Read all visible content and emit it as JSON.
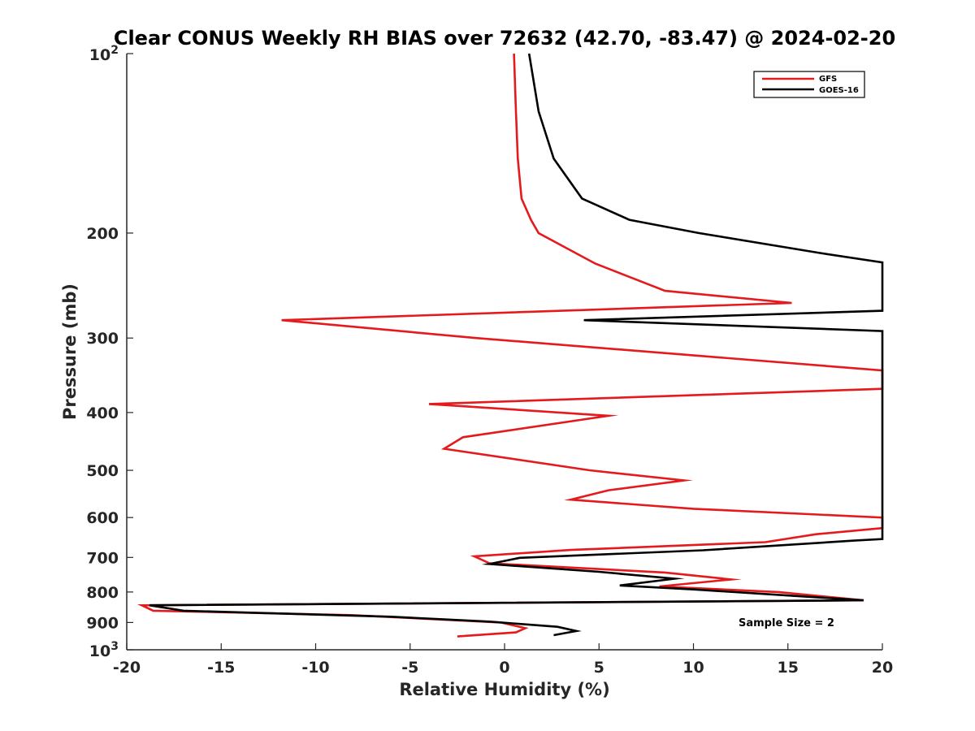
{
  "chart_data": {
    "type": "line",
    "title": "Clear CONUS Weekly RH BIAS over 72632 (42.70, -83.47) @ 2024-02-20",
    "xlabel": "Relative Humidity (%)",
    "ylabel": "Pressure (mb)",
    "xlim": [
      -20,
      20
    ],
    "ylim": [
      100,
      1000
    ],
    "y_scale": "log",
    "y_reversed": true,
    "grid": false,
    "legend_position": "top-right",
    "x_ticks": [
      "-20",
      "-15",
      "-10",
      "-5",
      "0",
      "5",
      "10",
      "15",
      "20"
    ],
    "y_ticks": [
      {
        "value": 100,
        "base": "10",
        "exp": "2"
      },
      {
        "value": 200,
        "label": "200"
      },
      {
        "value": 300,
        "label": "300"
      },
      {
        "value": 400,
        "label": "400"
      },
      {
        "value": 500,
        "label": "500"
      },
      {
        "value": 600,
        "label": "600"
      },
      {
        "value": 700,
        "label": "700"
      },
      {
        "value": 800,
        "label": "800"
      },
      {
        "value": 900,
        "label": "900"
      },
      {
        "value": 1000,
        "base": "10",
        "exp": "3"
      }
    ],
    "series": [
      {
        "name": "GFS",
        "color": "#e41a1c",
        "points": [
          [
            0.5,
            100
          ],
          [
            0.6,
            125
          ],
          [
            0.7,
            150
          ],
          [
            0.9,
            175
          ],
          [
            1.4,
            190
          ],
          [
            1.8,
            200
          ],
          [
            4.8,
            225
          ],
          [
            8.5,
            250
          ],
          [
            15.2,
            262
          ],
          [
            -11.8,
            280
          ],
          [
            -1.5,
            300
          ],
          [
            20,
            340
          ],
          [
            20,
            365
          ],
          [
            -4,
            387
          ],
          [
            5.5,
            405
          ],
          [
            -2.2,
            440
          ],
          [
            -3.2,
            460
          ],
          [
            4.5,
            500
          ],
          [
            9.5,
            520
          ],
          [
            5.5,
            540
          ],
          [
            3.5,
            560
          ],
          [
            10,
            580
          ],
          [
            20,
            600
          ],
          [
            20,
            625
          ],
          [
            16.5,
            640
          ],
          [
            13.8,
            660
          ],
          [
            3.5,
            680
          ],
          [
            -1.6,
            697
          ],
          [
            -0.8,
            716
          ],
          [
            8.5,
            742
          ],
          [
            12,
            762
          ],
          [
            8.2,
            783
          ],
          [
            14.5,
            800
          ],
          [
            19,
            826
          ],
          [
            -19.2,
            842
          ],
          [
            -18.6,
            860
          ],
          [
            -8,
            875
          ],
          [
            -0.2,
            900
          ],
          [
            1.1,
            920
          ],
          [
            0.6,
            935
          ],
          [
            -2.5,
            950
          ]
        ]
      },
      {
        "name": "GOES-16",
        "color": "#000000",
        "points": [
          [
            1.3,
            100
          ],
          [
            1.8,
            125
          ],
          [
            2.6,
            150
          ],
          [
            4.1,
            175
          ],
          [
            6.6,
            190
          ],
          [
            10.3,
            200
          ],
          [
            16.7,
            216
          ],
          [
            20,
            224
          ],
          [
            20,
            270
          ],
          [
            4.2,
            280
          ],
          [
            20,
            292
          ],
          [
            20,
            620
          ],
          [
            20,
            652
          ],
          [
            18.5,
            656
          ],
          [
            10.5,
            681
          ],
          [
            0.8,
            701
          ],
          [
            -0.8,
            718
          ],
          [
            5,
            740
          ],
          [
            9,
            760
          ],
          [
            6.1,
            780
          ],
          [
            10,
            792
          ],
          [
            19,
            826
          ],
          [
            -18.8,
            842
          ],
          [
            -17,
            860
          ],
          [
            -6,
            880
          ],
          [
            -0.8,
            897
          ],
          [
            2.8,
            915
          ],
          [
            3.8,
            930
          ],
          [
            2.6,
            945
          ]
        ]
      }
    ],
    "annotations": [
      {
        "text": "Sample Size = 2"
      }
    ]
  }
}
